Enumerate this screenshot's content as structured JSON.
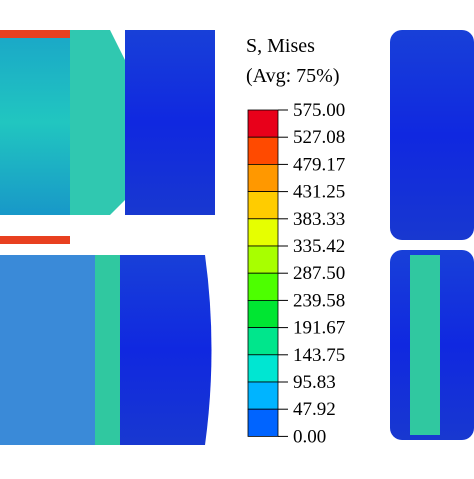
{
  "legend": {
    "title": "S, Mises",
    "subtitle": "(Avg: 75%)",
    "labels": [
      "575.00",
      "527.08",
      "479.17",
      "431.25",
      "383.33",
      "335.42",
      "287.50",
      "239.58",
      "191.67",
      "143.75",
      "95.83",
      "47.92",
      "0.00"
    ],
    "colors": [
      "#e8001a",
      "#ff4a00",
      "#ff9800",
      "#ffcc00",
      "#e6ff00",
      "#a8ff00",
      "#4dff00",
      "#00e632",
      "#00e68c",
      "#00e6d2",
      "#00b4ff",
      "#0064ff",
      "#0014ff"
    ]
  }
}
